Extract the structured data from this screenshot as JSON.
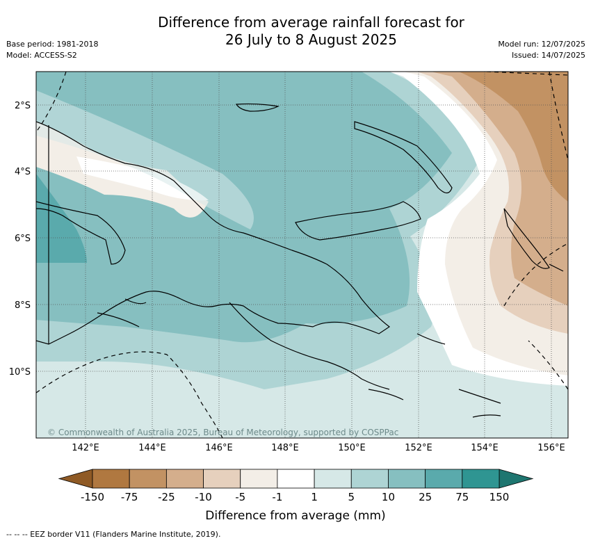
{
  "title": {
    "line1": "Difference from average rainfall forecast for",
    "line2": "26 July to 8 August 2025"
  },
  "meta_left": {
    "base_period": "Base period: 1981-2018",
    "model": "Model: ACCESS-S2"
  },
  "meta_right": {
    "model_run": "Model run: 12/07/2025",
    "issued": "Issued: 14/07/2025"
  },
  "map": {
    "lon_ticks": [
      "142°E",
      "144°E",
      "146°E",
      "148°E",
      "150°E",
      "152°E",
      "154°E",
      "156°E"
    ],
    "lat_ticks": [
      "2°S",
      "4°S",
      "6°S",
      "8°S",
      "10°S"
    ],
    "attribution": "© Commonwealth of Australia 2025, Bureau of Meteorology, supported by COSPPac"
  },
  "legend": {
    "title": "Difference from average (mm)",
    "boundaries": [
      "-150",
      "-75",
      "-25",
      "-10",
      "-5",
      "-1",
      "1",
      "5",
      "10",
      "25",
      "75",
      "150"
    ],
    "colors": [
      "#a66b30",
      "#b07840",
      "#c29263",
      "#d4ae8c",
      "#e6d0bd",
      "#f3eee7",
      "#ffffff",
      "#d6e8e7",
      "#aed4d4",
      "#86bfc0",
      "#5aaaac",
      "#2f9592",
      "#1e7670"
    ]
  },
  "footer": {
    "eez_note": "--  --  -- EEZ border V11 (Flanders Marine Institute, 2019)."
  }
}
